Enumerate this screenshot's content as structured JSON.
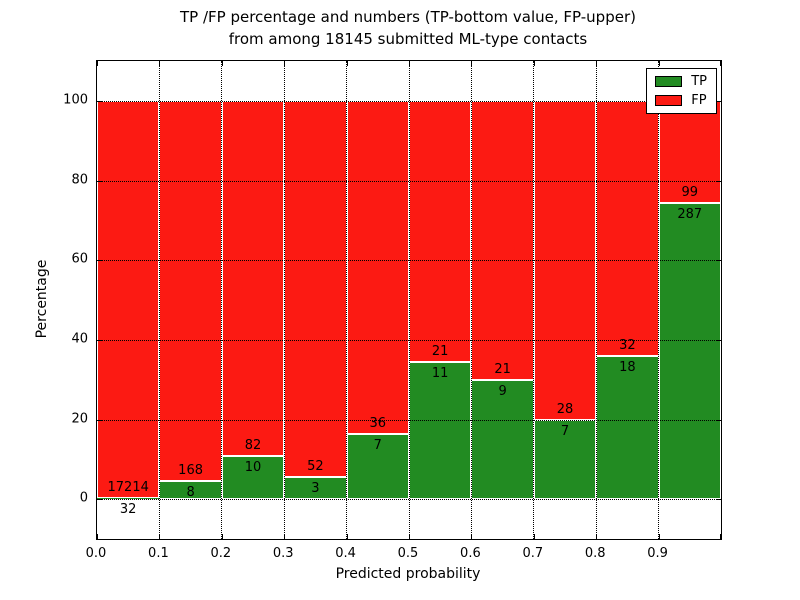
{
  "figure": {
    "title_line1": "TP /FP percentage and numbers (TP-bottom value, FP-upper)",
    "title_line2": "from among 18145 submitted ML-type contacts"
  },
  "axes": {
    "xlabel": "Predicted probability",
    "ylabel": "Percentage",
    "xtick_labels": [
      "0.0",
      "0.1",
      "0.2",
      "0.3",
      "0.4",
      "0.5",
      "0.6",
      "0.7",
      "0.8",
      "0.9"
    ],
    "ytick_values": [
      0,
      20,
      40,
      60,
      80,
      100
    ],
    "ytick_labels": [
      "0",
      "20",
      "40",
      "60",
      "80",
      "100"
    ],
    "xlim": [
      0.0,
      1.0
    ],
    "ylim": [
      -10,
      110
    ]
  },
  "legend": {
    "position": "upper right",
    "items": [
      {
        "label": "TP",
        "color": "#228b22"
      },
      {
        "label": "FP",
        "color": "#fc1a13"
      }
    ]
  },
  "colors": {
    "tp_green": "#228b22",
    "fp_red": "#fc1a13",
    "bar_edge": "#ffffff",
    "grid": "#000000",
    "background": "#ffffff"
  },
  "chart_data": {
    "type": "bar",
    "stacked": true,
    "normalized": "each 0.1-wide bin scaled to 100%, labels show raw counts (TP bottom, FP upper)",
    "title": "TP /FP percentage and numbers (TP-bottom value, FP-upper) from among 18145 submitted ML-type contacts",
    "xlabel": "Predicted probability",
    "ylabel": "Percentage",
    "total_contacts": 18145,
    "bin_width": 0.1,
    "categories": [
      "0.0-0.1",
      "0.1-0.2",
      "0.2-0.3",
      "0.3-0.4",
      "0.4-0.5",
      "0.5-0.6",
      "0.6-0.7",
      "0.7-0.8",
      "0.8-0.9",
      "0.9-1.0"
    ],
    "series": [
      {
        "name": "TP",
        "color": "#228b22",
        "counts": [
          32,
          8,
          10,
          3,
          7,
          11,
          9,
          7,
          18,
          287
        ]
      },
      {
        "name": "FP",
        "color": "#fc1a13",
        "counts": [
          17214,
          168,
          82,
          52,
          36,
          21,
          21,
          28,
          32,
          99
        ]
      }
    ],
    "tp_percent_of_bin": [
      0.19,
      4.55,
      10.87,
      5.45,
      16.28,
      34.38,
      30.0,
      20.0,
      36.0,
      74.35
    ],
    "grid": true,
    "grid_style": "dotted",
    "legend_position": "upper right",
    "ylim": [
      -10,
      110
    ]
  }
}
